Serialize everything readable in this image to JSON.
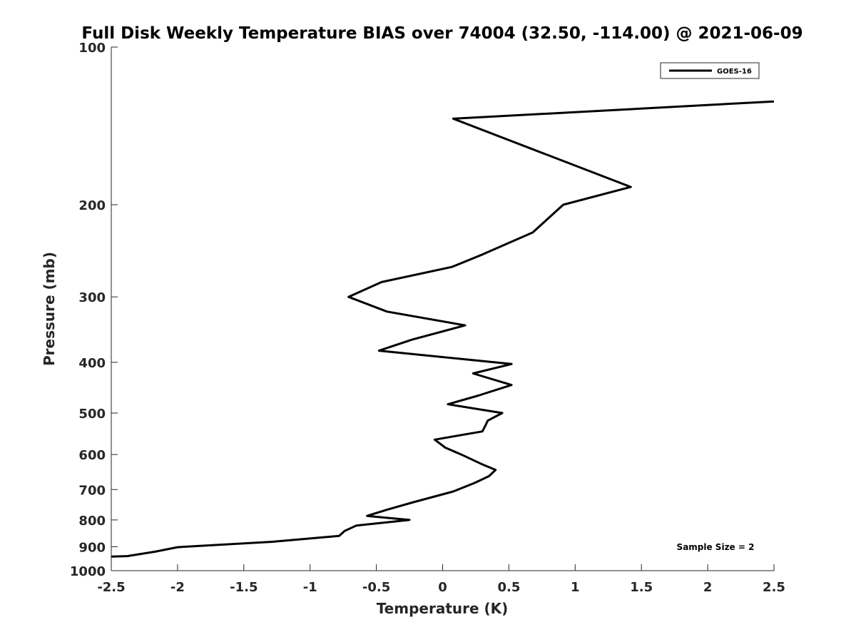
{
  "chart_data": {
    "type": "line",
    "title": "Full Disk Weekly Temperature BIAS over 74004 (32.50, -114.00) @ 2021-06-09",
    "xlabel": "Temperature (K)",
    "ylabel": "Pressure (mb)",
    "xlim": [
      -2.5,
      2.5
    ],
    "ylim": [
      100,
      1000
    ],
    "y_scale": "log",
    "y_reversed": true,
    "grid": false,
    "x_ticks": [
      -2.5,
      -2,
      -1.5,
      -1,
      -0.5,
      0,
      0.5,
      1,
      1.5,
      2,
      2.5
    ],
    "x_tick_labels": [
      "-2.5",
      "-2",
      "-1.5",
      "-1",
      "-0.5",
      "0",
      "0.5",
      "1",
      "1.5",
      "2",
      "2.5"
    ],
    "y_ticks": [
      100,
      200,
      300,
      400,
      500,
      600,
      700,
      800,
      900,
      1000
    ],
    "y_tick_labels": [
      "100",
      "200",
      "300",
      "400",
      "500",
      "600",
      "700",
      "800",
      "900",
      "1000"
    ],
    "legend": {
      "position": "top-right",
      "entries": [
        "GOES-16"
      ]
    },
    "annotation": "Sample Size = 2",
    "line_color": "#000000",
    "series": [
      {
        "name": "GOES-16",
        "points": [
          {
            "x": 2.5,
            "y": 127
          },
          {
            "x": 0.08,
            "y": 137
          },
          {
            "x": 1.42,
            "y": 185
          },
          {
            "x": 0.91,
            "y": 200
          },
          {
            "x": 0.68,
            "y": 226
          },
          {
            "x": 0.3,
            "y": 249
          },
          {
            "x": 0.07,
            "y": 263
          },
          {
            "x": -0.46,
            "y": 281
          },
          {
            "x": -0.71,
            "y": 300
          },
          {
            "x": -0.42,
            "y": 320
          },
          {
            "x": 0.17,
            "y": 340
          },
          {
            "x": -0.23,
            "y": 362
          },
          {
            "x": -0.48,
            "y": 380
          },
          {
            "x": 0.52,
            "y": 403
          },
          {
            "x": 0.23,
            "y": 420
          },
          {
            "x": 0.52,
            "y": 442
          },
          {
            "x": 0.27,
            "y": 463
          },
          {
            "x": 0.04,
            "y": 481
          },
          {
            "x": 0.45,
            "y": 500
          },
          {
            "x": 0.34,
            "y": 517
          },
          {
            "x": 0.32,
            "y": 530
          },
          {
            "x": 0.3,
            "y": 542
          },
          {
            "x": -0.06,
            "y": 562
          },
          {
            "x": 0.02,
            "y": 582
          },
          {
            "x": 0.16,
            "y": 603
          },
          {
            "x": 0.29,
            "y": 625
          },
          {
            "x": 0.4,
            "y": 642
          },
          {
            "x": 0.35,
            "y": 660
          },
          {
            "x": 0.24,
            "y": 680
          },
          {
            "x": 0.08,
            "y": 706
          },
          {
            "x": -0.22,
            "y": 740
          },
          {
            "x": -0.42,
            "y": 765
          },
          {
            "x": -0.57,
            "y": 786
          },
          {
            "x": -0.25,
            "y": 800
          },
          {
            "x": -0.65,
            "y": 820
          },
          {
            "x": -0.74,
            "y": 840
          },
          {
            "x": -0.78,
            "y": 858
          },
          {
            "x": -1.27,
            "y": 880
          },
          {
            "x": -2.0,
            "y": 902
          },
          {
            "x": -2.17,
            "y": 920
          },
          {
            "x": -2.38,
            "y": 938
          },
          {
            "x": -2.5,
            "y": 940
          }
        ]
      }
    ]
  }
}
